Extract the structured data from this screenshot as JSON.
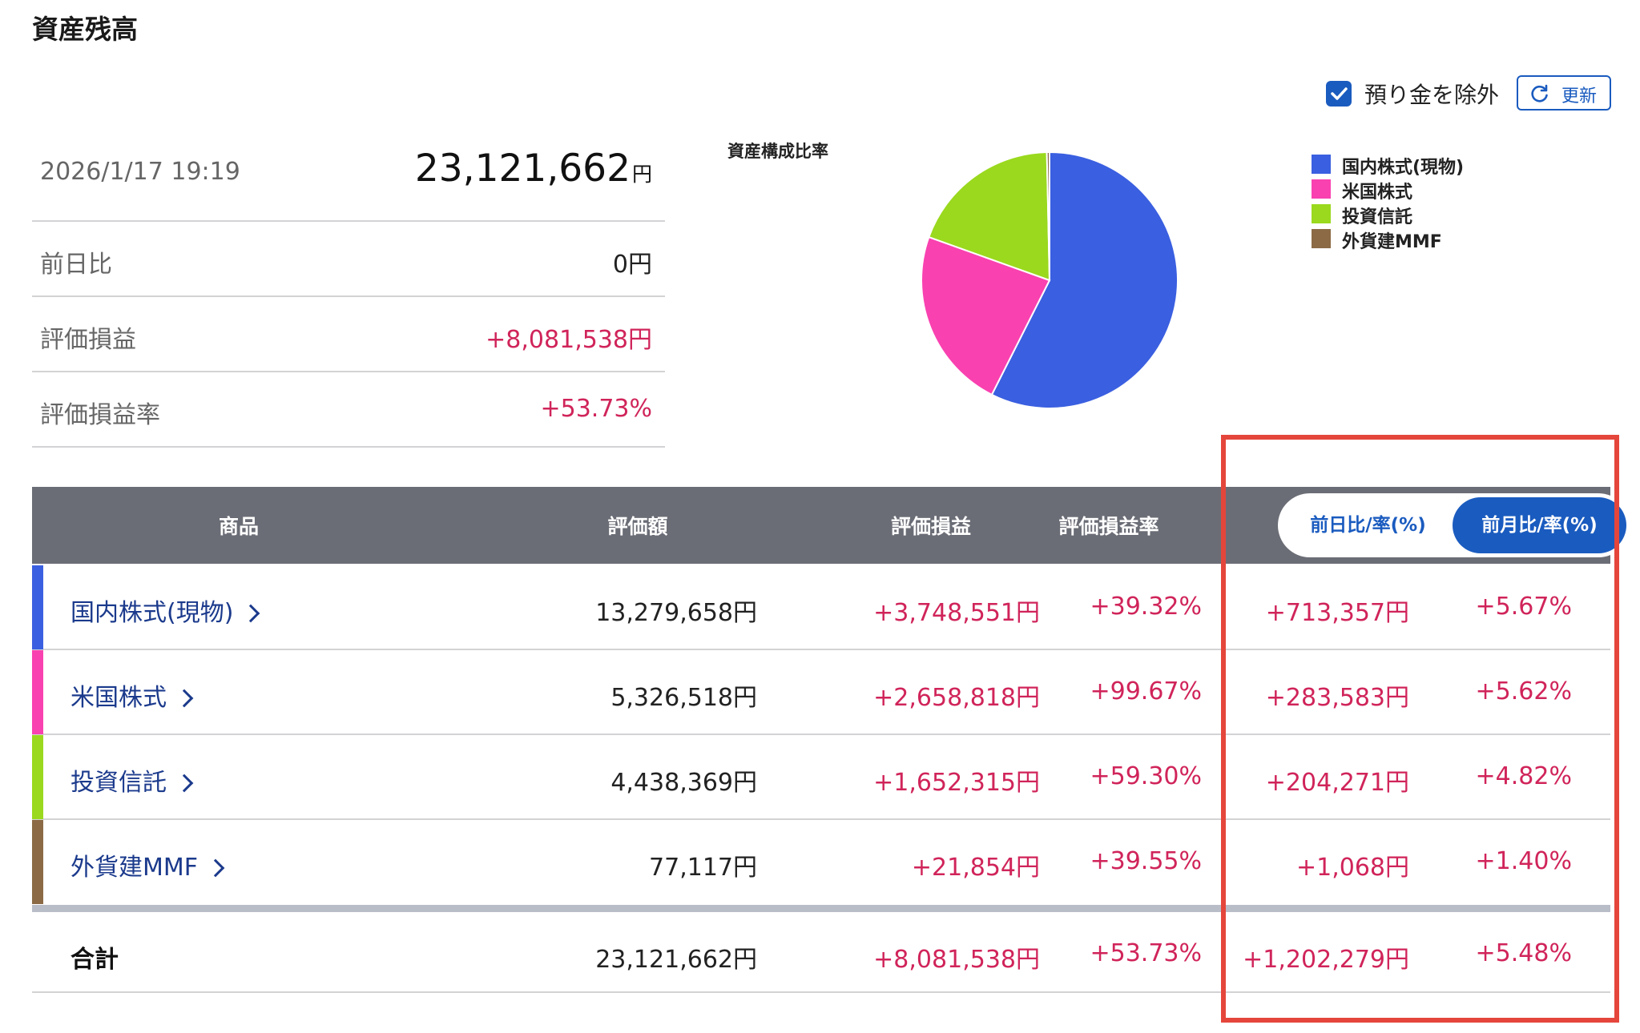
{
  "page_title": "資産残高",
  "summary": {
    "datetime": "2026/1/17 19:19",
    "total_value": "23,121,662",
    "total_unit": "円",
    "rows": [
      {
        "label": "前日比",
        "value": "0円"
      },
      {
        "label": "評価損益",
        "value": "+8,081,538円"
      },
      {
        "label": "評価損益率",
        "value": "+53.73%"
      }
    ]
  },
  "controls": {
    "exclude_deposit_label": "預り金を除外",
    "exclude_deposit_checked": true,
    "refresh_label": "更新"
  },
  "chart_data": {
    "type": "pie",
    "title": "資産構成比率",
    "legend_position": "top-right",
    "slices": [
      {
        "label": "国内株式(現物)",
        "value": 13279658,
        "color": "#3a5fe0"
      },
      {
        "label": "米国株式",
        "value": 5326518,
        "color": "#f941b0"
      },
      {
        "label": "投資信託",
        "value": 4438369,
        "color": "#9ad91e"
      },
      {
        "label": "外貨建MMF",
        "value": 77117,
        "color": "#8b6a45"
      }
    ]
  },
  "table": {
    "headers": {
      "product": "商品",
      "value": "評価額",
      "pl": "評価損益",
      "pl_rate": "評価損益率"
    },
    "toggle": {
      "left": "前日比/率(%)",
      "right": "前月比/率(%)",
      "active": "right"
    },
    "rows": [
      {
        "name": "国内株式(現物)",
        "value": "13,279,658円",
        "pl": "+3,748,551円",
        "pl_rate": "+39.32%",
        "change": "+713,357円",
        "change_rate": "+5.67%",
        "color": "#3a5fe0"
      },
      {
        "name": "米国株式",
        "value": "5,326,518円",
        "pl": "+2,658,818円",
        "pl_rate": "+99.67%",
        "change": "+283,583円",
        "change_rate": "+5.62%",
        "color": "#f941b0"
      },
      {
        "name": "投資信託",
        "value": "4,438,369円",
        "pl": "+1,652,315円",
        "pl_rate": "+59.30%",
        "change": "+204,271円",
        "change_rate": "+4.82%",
        "color": "#9ad91e"
      },
      {
        "name": "外貨建MMF",
        "value": "77,117円",
        "pl": "+21,854円",
        "pl_rate": "+39.55%",
        "change": "+1,068円",
        "change_rate": "+1.40%",
        "color": "#8b6a45"
      }
    ],
    "total": {
      "label": "合計",
      "value": "23,121,662円",
      "pl": "+8,081,538円",
      "pl_rate": "+53.73%",
      "change": "+1,202,279円",
      "change_rate": "+5.48%"
    }
  },
  "colors": {
    "accent": "#1a5bbf",
    "positive": "#d0245a",
    "header_bg": "#6b6d76",
    "highlight": "#e5463c"
  }
}
